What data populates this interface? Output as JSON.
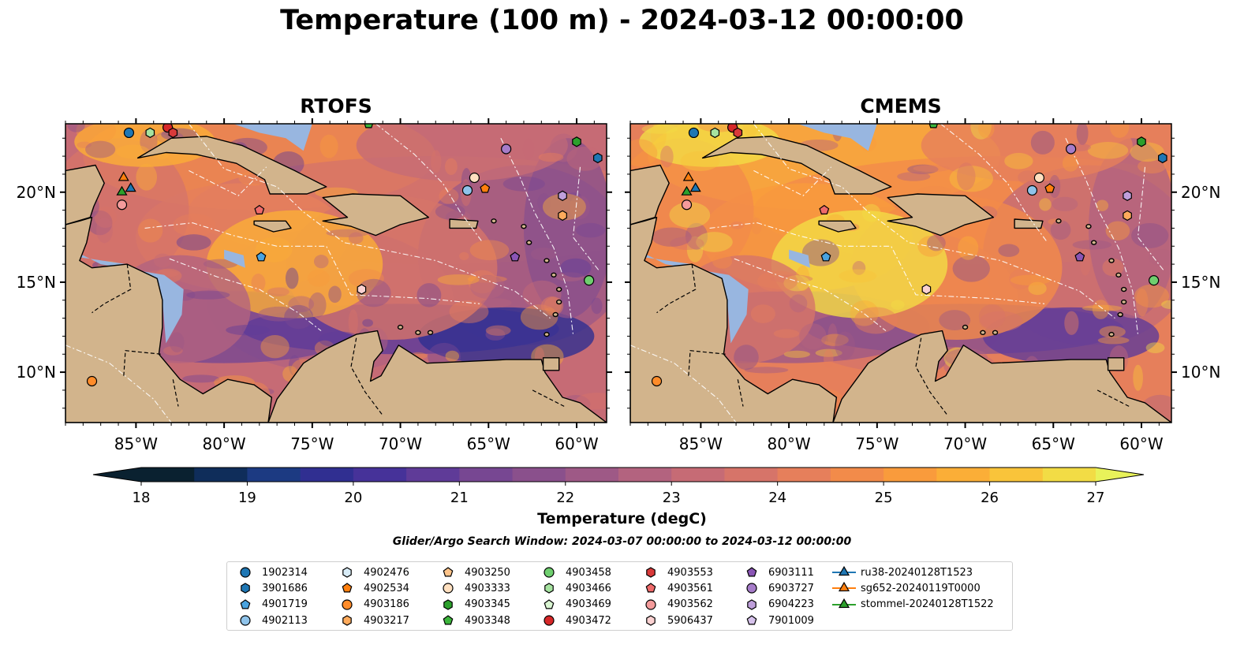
{
  "title": "Temperature (100 m) - 2024-03-12 00:00:00",
  "panels": [
    {
      "title": "RTOFS",
      "palette_shift": 0
    },
    {
      "title": "CMEMS",
      "palette_shift": 2
    }
  ],
  "map": {
    "lon_range": [
      -89,
      -58.3
    ],
    "lat_range": [
      7.2,
      23.8
    ],
    "lon_ticks": [
      "85°W",
      "80°W",
      "75°W",
      "70°W",
      "65°W",
      "60°W"
    ],
    "lat_ticks": [
      "20°N",
      "15°N",
      "10°N"
    ],
    "colors": {
      "land": "#d2b48c",
      "shelf": "#98b6e0",
      "deep": "#06202f",
      "eez": "#ffffff"
    }
  },
  "colorbar": {
    "label": "Temperature (degC)",
    "ticks": [
      "18",
      "19",
      "20",
      "21",
      "22",
      "23",
      "24",
      "25",
      "26",
      "27"
    ],
    "min": 18,
    "max": 27,
    "extend": "both"
  },
  "search_window": "Glider/Argo Search Window: 2024-03-07 00:00:00 to 2024-03-12 00:00:00",
  "legend": [
    {
      "label": "1902314",
      "marker": "circle",
      "color": "#1f77b4"
    },
    {
      "label": "3901686",
      "marker": "hexagon",
      "color": "#1f77b4"
    },
    {
      "label": "4901719",
      "marker": "pentagon",
      "color": "#4aa3df"
    },
    {
      "label": "4902113",
      "marker": "circle",
      "color": "#8fc3ea"
    },
    {
      "label": "4902476",
      "marker": "hexagon",
      "color": "#d8ecf7"
    },
    {
      "label": "4902534",
      "marker": "pentagon",
      "color": "#ff7f0e"
    },
    {
      "label": "4903186",
      "marker": "circle",
      "color": "#ff8c2a"
    },
    {
      "label": "4903217",
      "marker": "hexagon",
      "color": "#ffab5c"
    },
    {
      "label": "4903250",
      "marker": "pentagon",
      "color": "#ffc48a"
    },
    {
      "label": "4903333",
      "marker": "circle",
      "color": "#ffe0c0"
    },
    {
      "label": "4903345",
      "marker": "hexagon",
      "color": "#2ca02c"
    },
    {
      "label": "4903348",
      "marker": "pentagon",
      "color": "#3cb53c"
    },
    {
      "label": "4903458",
      "marker": "circle",
      "color": "#6fcf6f"
    },
    {
      "label": "4903466",
      "marker": "hexagon",
      "color": "#a6e3a0"
    },
    {
      "label": "4903469",
      "marker": "pentagon",
      "color": "#d9f5d2"
    },
    {
      "label": "4903472",
      "marker": "circle",
      "color": "#d62728"
    },
    {
      "label": "4903553",
      "marker": "hexagon",
      "color": "#d93a3a"
    },
    {
      "label": "4903561",
      "marker": "pentagon",
      "color": "#ef6a6a"
    },
    {
      "label": "4903562",
      "marker": "circle",
      "color": "#f49b9b"
    },
    {
      "label": "5906437",
      "marker": "hexagon",
      "color": "#fad1d1"
    },
    {
      "label": "6903111",
      "marker": "pentagon",
      "color": "#8a55b5"
    },
    {
      "label": "6903727",
      "marker": "circle",
      "color": "#a67cc9"
    },
    {
      "label": "6904223",
      "marker": "hexagon",
      "color": "#bf9fdb"
    },
    {
      "label": "7901009",
      "marker": "pentagon",
      "color": "#d7c3ec"
    },
    {
      "label": "ru38-20240128T1523",
      "marker": "triangle",
      "color": "#1f77b4",
      "line": true
    },
    {
      "label": "sg652-20240119T0000",
      "marker": "triangle",
      "color": "#ff7f0e",
      "line": true
    },
    {
      "label": "stommel-20240128T1522",
      "marker": "triangle",
      "color": "#2ca02c",
      "line": true
    }
  ],
  "platforms": [
    {
      "label": "1902314",
      "lon": -85.4,
      "lat": 23.3
    },
    {
      "label": "4903466",
      "lon": -84.2,
      "lat": 23.3
    },
    {
      "label": "4903472",
      "lon": -83.2,
      "lat": 23.6
    },
    {
      "label": "4903553",
      "lon": -82.9,
      "lat": 23.3
    },
    {
      "label": "4903348",
      "lon": -71.8,
      "lat": 23.8
    },
    {
      "label": "6903727",
      "lon": -64.0,
      "lat": 22.4
    },
    {
      "label": "4903345",
      "lon": -60.0,
      "lat": 22.8
    },
    {
      "label": "3901686",
      "lon": -58.8,
      "lat": 21.9
    },
    {
      "label": "4903333",
      "lon": -65.8,
      "lat": 20.8
    },
    {
      "label": "4902113",
      "lon": -66.2,
      "lat": 20.1
    },
    {
      "label": "4902534",
      "lon": -65.2,
      "lat": 20.2
    },
    {
      "label": "6904223",
      "lon": -60.8,
      "lat": 19.8
    },
    {
      "label": "4903217",
      "lon": -60.8,
      "lat": 18.7
    },
    {
      "label": "4903562",
      "lon": -85.8,
      "lat": 19.3
    },
    {
      "label": "4903561",
      "lon": -78.0,
      "lat": 19.0
    },
    {
      "label": "4901719",
      "lon": -77.9,
      "lat": 16.4
    },
    {
      "label": "6903111",
      "lon": -63.5,
      "lat": 16.4
    },
    {
      "label": "5906437",
      "lon": -72.2,
      "lat": 14.6
    },
    {
      "label": "4903458",
      "lon": -59.3,
      "lat": 15.1
    },
    {
      "label": "4903186",
      "lon": -87.5,
      "lat": 9.5
    },
    {
      "label": "sg652-20240119T0000",
      "lon": -85.7,
      "lat": 20.8
    },
    {
      "label": "ru38-20240128T1523",
      "lon": -85.3,
      "lat": 20.2
    },
    {
      "label": "stommel-20240128T1522",
      "lon": -85.8,
      "lat": 20.0
    }
  ]
}
